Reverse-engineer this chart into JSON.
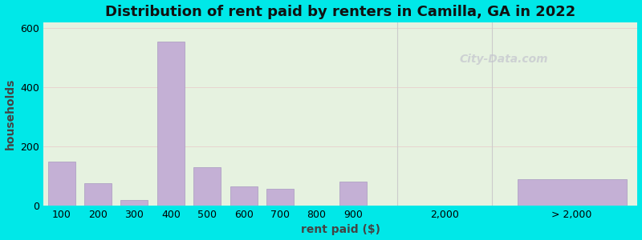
{
  "title": "Distribution of rent paid by renters in Camilla, GA in 2022",
  "xlabel": "rent paid ($)",
  "ylabel": "households",
  "bar_color": "#c4b0d5",
  "bar_edge_color": "#a898c0",
  "background_outer": "#00e8e8",
  "background_inner": "#e6f2e0",
  "ylim": [
    0,
    620
  ],
  "yticks": [
    0,
    200,
    400,
    600
  ],
  "main_labels": [
    "100",
    "200",
    "300",
    "400",
    "500",
    "600",
    "700",
    "800",
    "900"
  ],
  "main_values": [
    150,
    75,
    20,
    555,
    130,
    65,
    58,
    0,
    80
  ],
  "gt2000_value": 90,
  "title_fontsize": 13,
  "axis_label_fontsize": 10,
  "tick_fontsize": 9,
  "watermark_text": "City-Data.com"
}
